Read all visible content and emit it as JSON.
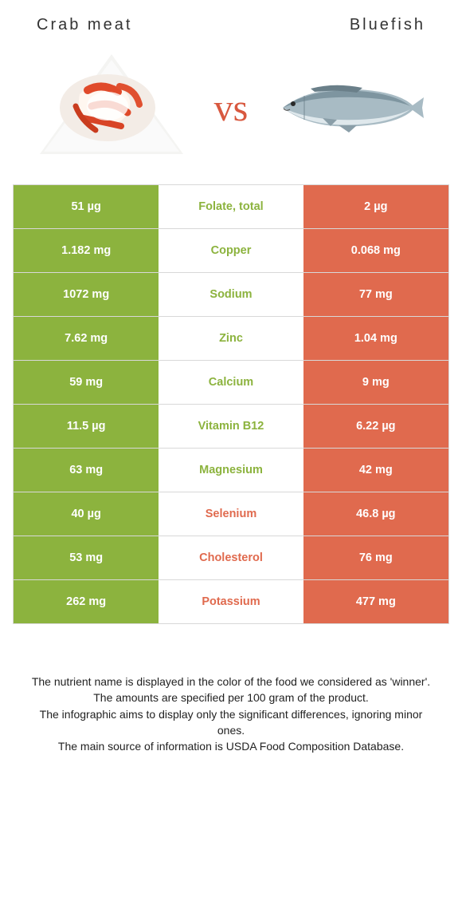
{
  "header": {
    "left_title": "Crab meat",
    "right_title": "Bluefish",
    "vs_label": "vs"
  },
  "colors": {
    "left_bg": "#8cb33e",
    "right_bg": "#e06a4e",
    "left_text": "#8cb33e",
    "right_text": "#e06a4e"
  },
  "table": {
    "rows": [
      {
        "left": "51 µg",
        "label": "Folate, total",
        "right": "2 µg",
        "winner": "left"
      },
      {
        "left": "1.182 mg",
        "label": "Copper",
        "right": "0.068 mg",
        "winner": "left"
      },
      {
        "left": "1072 mg",
        "label": "Sodium",
        "right": "77 mg",
        "winner": "left"
      },
      {
        "left": "7.62 mg",
        "label": "Zinc",
        "right": "1.04 mg",
        "winner": "left"
      },
      {
        "left": "59 mg",
        "label": "Calcium",
        "right": "9 mg",
        "winner": "left"
      },
      {
        "left": "11.5 µg",
        "label": "Vitamin B12",
        "right": "6.22 µg",
        "winner": "left"
      },
      {
        "left": "63 mg",
        "label": "Magnesium",
        "right": "42 mg",
        "winner": "left"
      },
      {
        "left": "40 µg",
        "label": "Selenium",
        "right": "46.8 µg",
        "winner": "right"
      },
      {
        "left": "53 mg",
        "label": "Cholesterol",
        "right": "76 mg",
        "winner": "right"
      },
      {
        "left": "262 mg",
        "label": "Potassium",
        "right": "477 mg",
        "winner": "right"
      }
    ]
  },
  "footnotes": {
    "line1": "The nutrient name is displayed in the color of the food we considered as 'winner'.",
    "line2": "The amounts are specified per 100 gram of the product.",
    "line3": "The infographic aims to display only the significant differences, ignoring minor ones.",
    "line4": "The main source of information is USDA Food Composition Database."
  }
}
